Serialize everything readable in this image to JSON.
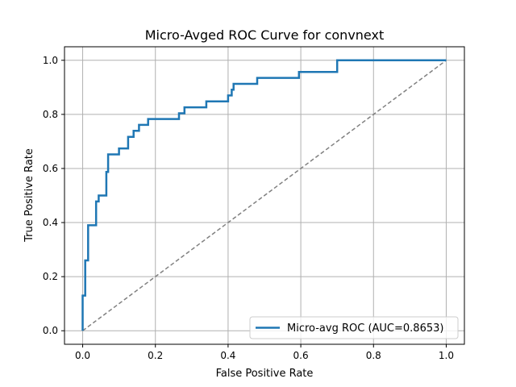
{
  "chart_data": {
    "type": "line",
    "title": "Micro-Avged ROC Curve for convnext",
    "xlabel": "False Positive Rate",
    "ylabel": "True Positive Rate",
    "xlim": [
      -0.05,
      1.05
    ],
    "ylim": [
      -0.05,
      1.05
    ],
    "xticks": [
      0.0,
      0.2,
      0.4,
      0.6,
      0.8,
      1.0
    ],
    "xtick_labels": [
      "0.0",
      "0.2",
      "0.4",
      "0.6",
      "0.8",
      "1.0"
    ],
    "yticks": [
      0.0,
      0.2,
      0.4,
      0.6,
      0.8,
      1.0
    ],
    "ytick_labels": [
      "0.0",
      "0.2",
      "0.4",
      "0.6",
      "0.8",
      "1.0"
    ],
    "grid": true,
    "legend_position": "lower-right",
    "series": [
      {
        "name": "Micro-avg ROC (AUC=0.8653)",
        "color": "#1f77b4",
        "style": "solid",
        "x": [
          0.0,
          0.0,
          0.007,
          0.007,
          0.015,
          0.015,
          0.022,
          0.022,
          0.037,
          0.037,
          0.044,
          0.044,
          0.065,
          0.065,
          0.07,
          0.07,
          0.1,
          0.1,
          0.125,
          0.125,
          0.14,
          0.14,
          0.155,
          0.155,
          0.18,
          0.18,
          0.265,
          0.265,
          0.28,
          0.28,
          0.34,
          0.34,
          0.4,
          0.4,
          0.41,
          0.41,
          0.415,
          0.415,
          0.48,
          0.48,
          0.595,
          0.595,
          0.7,
          0.7,
          1.0
        ],
        "y": [
          0.0,
          0.13,
          0.13,
          0.26,
          0.26,
          0.39,
          0.39,
          0.39,
          0.39,
          0.478,
          0.478,
          0.5,
          0.5,
          0.587,
          0.587,
          0.652,
          0.652,
          0.674,
          0.674,
          0.717,
          0.717,
          0.739,
          0.739,
          0.761,
          0.761,
          0.783,
          0.783,
          0.804,
          0.804,
          0.826,
          0.826,
          0.848,
          0.848,
          0.87,
          0.87,
          0.891,
          0.891,
          0.913,
          0.913,
          0.935,
          0.935,
          0.957,
          0.957,
          1.0,
          1.0
        ]
      },
      {
        "name": "",
        "color": "#808080",
        "style": "dashed",
        "x": [
          0.0,
          1.0
        ],
        "y": [
          0.0,
          1.0
        ]
      }
    ]
  }
}
